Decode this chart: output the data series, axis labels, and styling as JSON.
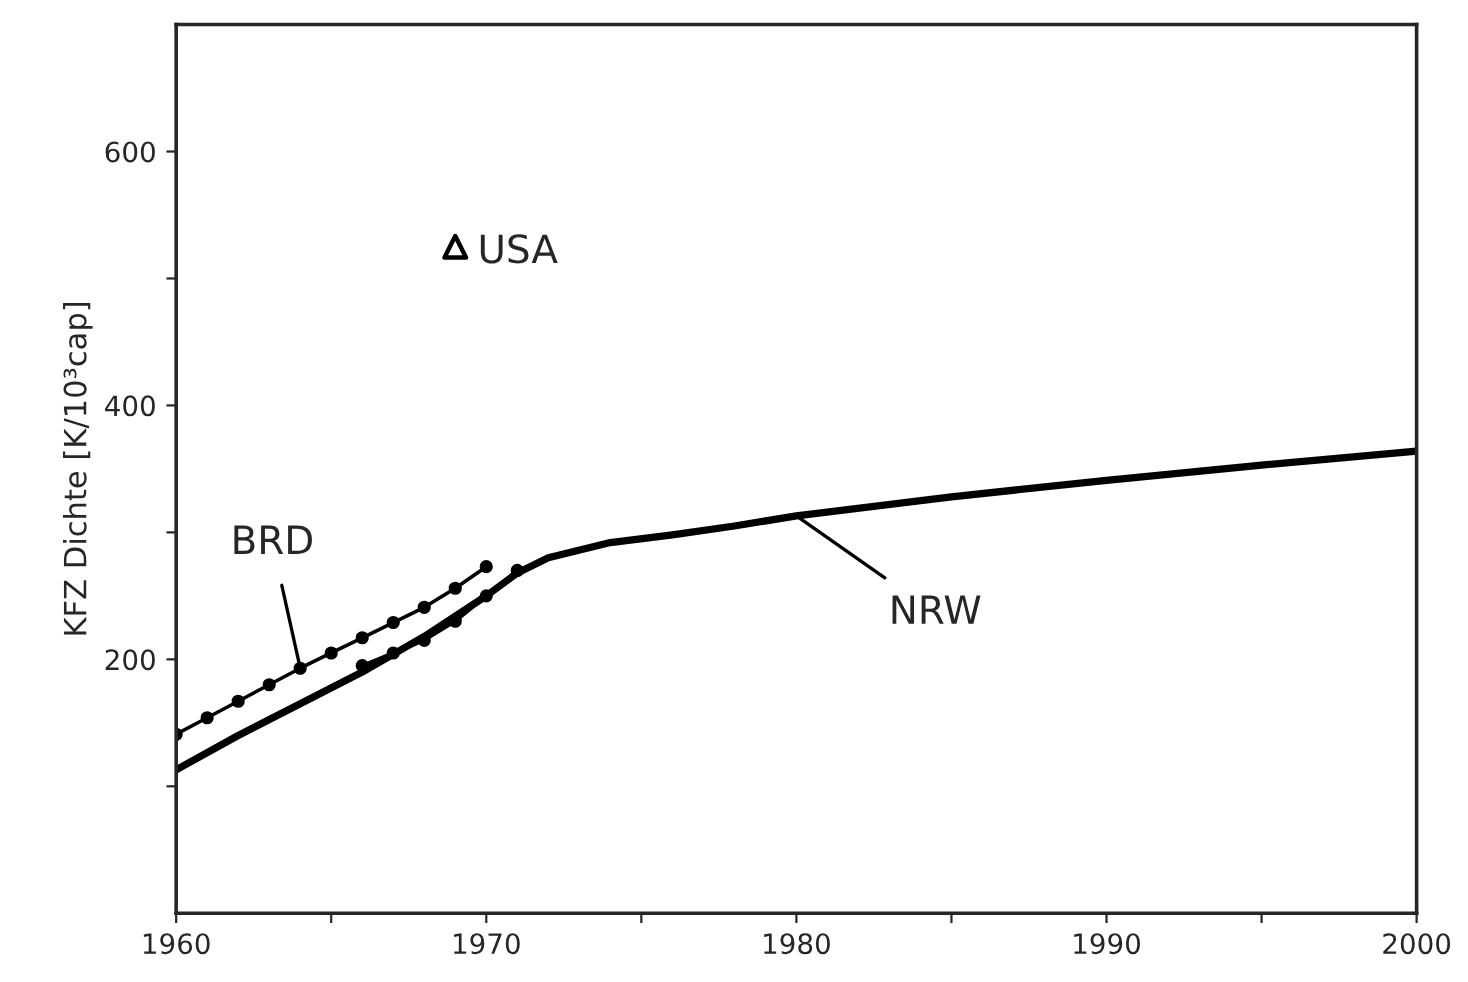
{
  "chart_data": {
    "type": "line",
    "ylabel": "KFZ Dichte [K/10³cap]",
    "xlim": [
      1960,
      2000
    ],
    "ylim": [
      0,
      700
    ],
    "xticks": [
      1960,
      {
        "value": 1965,
        "label": null
      },
      1970,
      {
        "value": 1975,
        "label": null
      },
      1980,
      {
        "value": 1985,
        "label": null
      },
      1990,
      {
        "value": 1995,
        "label": null
      },
      2000
    ],
    "yticks": [
      {
        "value": 100,
        "label": null
      },
      200,
      {
        "value": 300,
        "label": null
      },
      400,
      {
        "value": 500,
        "label": null
      },
      600
    ],
    "grid": false,
    "legend": false,
    "series": [
      {
        "name": "BRD",
        "color": "#000000",
        "marker": "circle",
        "x": [
          1960,
          1961,
          1962,
          1963,
          1964,
          1965,
          1966,
          1967,
          1968,
          1969,
          1970
        ],
        "values": [
          141,
          154,
          167,
          180,
          193,
          205,
          217,
          229,
          241,
          256,
          273
        ]
      },
      {
        "name": "NRW",
        "color": "#000000",
        "marker": "none",
        "x": [
          1960,
          1962,
          1964,
          1966,
          1968,
          1970,
          1971,
          1972,
          1974,
          1976,
          1978,
          1980,
          1985,
          1990,
          1995,
          2000
        ],
        "values": [
          113,
          140,
          165,
          190,
          218,
          250,
          268,
          280,
          292,
          298,
          305,
          313,
          328,
          341,
          353,
          364
        ]
      },
      {
        "color": "#000000",
        "marker": "circle",
        "x": [
          1966,
          1967,
          1968,
          1969,
          1970,
          1971
        ],
        "values": [
          195,
          205,
          215,
          230,
          250,
          270
        ]
      },
      {
        "name": "USA",
        "type": "scatter",
        "color": "#000000",
        "marker": "triangle",
        "x": [
          1969
        ],
        "values": [
          525
        ]
      }
    ]
  }
}
